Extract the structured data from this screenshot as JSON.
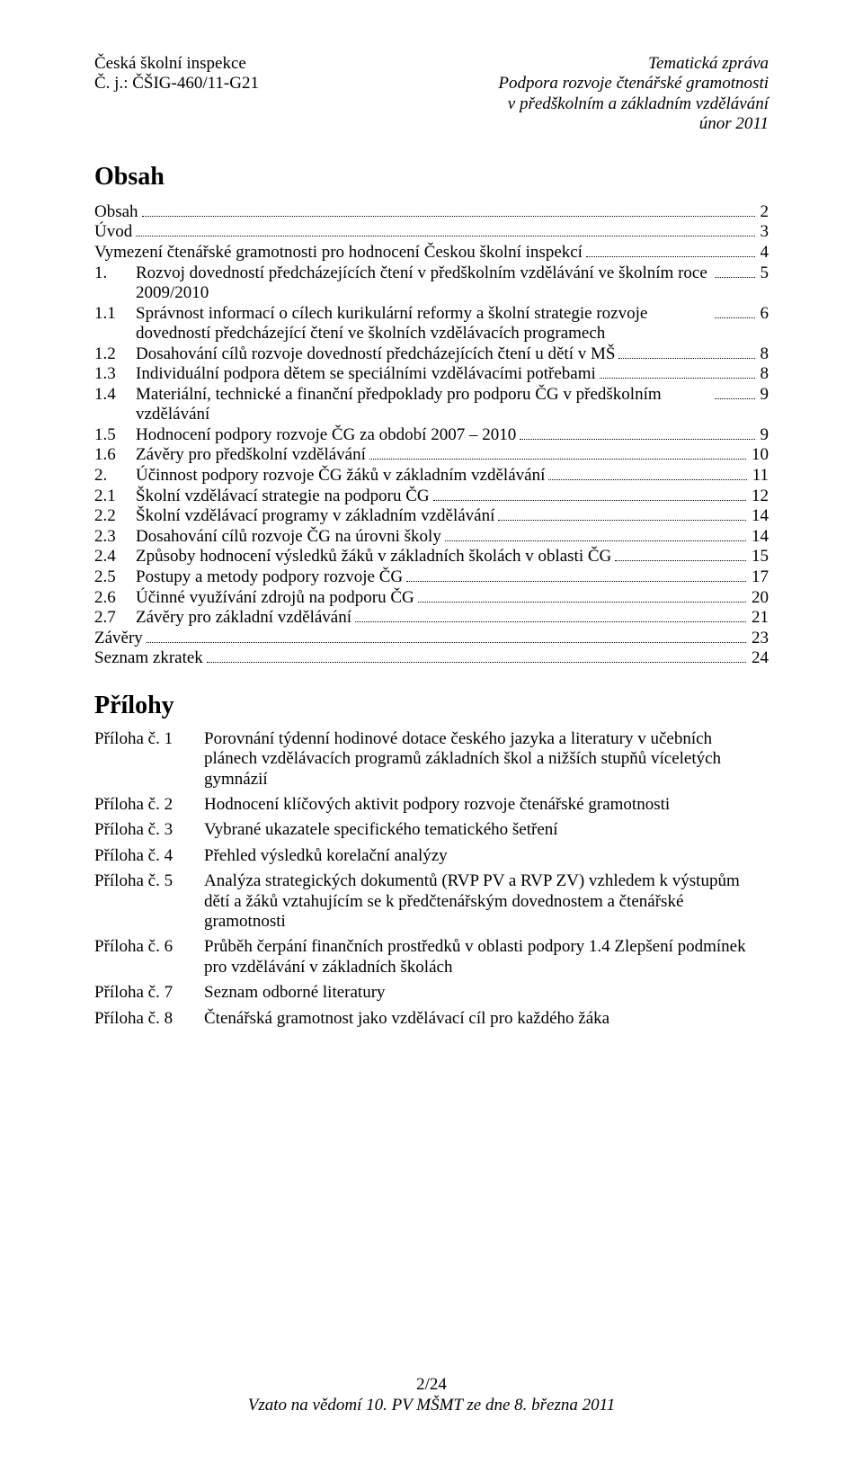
{
  "header": {
    "left_line1": "Česká školní inspekce",
    "left_line2": "Č. j.: ČŠIG-460/11-G21",
    "right_line1": "Tematická zpráva",
    "right_line2": "Podpora rozvoje čtenářské gramotnosti",
    "right_line3": "v předškolním a základním vzdělávání",
    "right_line4": "únor 2011"
  },
  "title_obsah": "Obsah",
  "toc": [
    {
      "num": "",
      "label": "Obsah",
      "page": "2",
      "indent": 0
    },
    {
      "num": "",
      "label": "Úvod",
      "page": "3",
      "indent": 0
    },
    {
      "num": "",
      "label": "Vymezení čtenářské gramotnosti pro hodnocení Českou školní inspekcí",
      "page": "4",
      "indent": 0
    },
    {
      "num": "1.",
      "label": "Rozvoj dovedností předcházejících čtení v předškolním vzdělávání ve školním roce 2009/2010",
      "page": "5",
      "indent": 0,
      "wrap": true
    },
    {
      "num": "1.1",
      "label": "Správnost informací o cílech kurikulární reformy a školní strategie rozvoje dovedností předcházející čtení ve školních vzdělávacích programech",
      "page": "6",
      "indent": 1,
      "wrap": true
    },
    {
      "num": "1.2",
      "label": "Dosahování cílů rozvoje dovedností předcházejících čtení u dětí v MŠ",
      "page": "8",
      "indent": 1
    },
    {
      "num": "1.3",
      "label": "Individuální podpora dětem se speciálními vzdělávacími potřebami",
      "page": "8",
      "indent": 1
    },
    {
      "num": "1.4",
      "label": "Materiální, technické a finanční předpoklady pro podporu ČG v předškolním vzdělávání",
      "page": "9",
      "indent": 1,
      "wrap": true
    },
    {
      "num": "1.5",
      "label": "Hodnocení podpory rozvoje ČG za období 2007 – 2010",
      "page": "9",
      "indent": 1
    },
    {
      "num": "1.6",
      "label": "Závěry pro předškolní vzdělávání",
      "page": "10",
      "indent": 1
    },
    {
      "num": "2.",
      "label": "Účinnost podpory rozvoje ČG žáků v základním vzdělávání",
      "page": "11",
      "indent": 0
    },
    {
      "num": "2.1",
      "label": "Školní vzdělávací strategie na podporu ČG",
      "page": "12",
      "indent": 1
    },
    {
      "num": "2.2",
      "label": "Školní vzdělávací programy v základním vzdělávání",
      "page": "14",
      "indent": 1
    },
    {
      "num": "2.3",
      "label": "Dosahování cílů rozvoje ČG na úrovni školy",
      "page": "14",
      "indent": 1
    },
    {
      "num": "2.4",
      "label": "Způsoby hodnocení výsledků žáků v základních školách v oblasti ČG",
      "page": "15",
      "indent": 1
    },
    {
      "num": "2.5",
      "label": "Postupy a metody podpory rozvoje ČG",
      "page": "17",
      "indent": 1
    },
    {
      "num": "2.6",
      "label": "Účinné využívání zdrojů na podporu ČG",
      "page": "20",
      "indent": 1
    },
    {
      "num": "2.7",
      "label": "Závěry pro základní vzdělávání",
      "page": "21",
      "indent": 1
    },
    {
      "num": "",
      "label": "Závěry",
      "page": "23",
      "indent": 0
    },
    {
      "num": "",
      "label": "Seznam zkratek",
      "page": "24",
      "indent": 0
    }
  ],
  "title_prilohy": "Přílohy",
  "appendices": [
    {
      "label": "Příloha č. 1",
      "text": "Porovnání týdenní hodinové dotace českého jazyka a literatury v učebních plánech vzdělávacích programů základních škol a nižších stupňů víceletých gymnázií"
    },
    {
      "label": "Příloha č. 2",
      "text": "Hodnocení klíčových aktivit podpory rozvoje čtenářské gramotnosti"
    },
    {
      "label": "Příloha č. 3",
      "text": "Vybrané ukazatele specifického tematického šetření"
    },
    {
      "label": "Příloha č. 4",
      "text": "Přehled výsledků korelační analýzy"
    },
    {
      "label": "Příloha č. 5",
      "text": "Analýza strategických dokumentů (RVP PV a RVP ZV) vzhledem k výstupům dětí a žáků vztahujícím se k předčtenářským dovednostem a čtenářské gramotnosti"
    },
    {
      "label": "Příloha č. 6",
      "text": "Průběh čerpání finančních prostředků v oblasti podpory 1.4 Zlepšení podmínek pro vzdělávání v základních školách"
    },
    {
      "label": "Příloha č. 7",
      "text": "Seznam odborné literatury"
    },
    {
      "label": "Příloha č. 8",
      "text": "Čtenářská gramotnost jako vzdělávací cíl pro každého žáka"
    }
  ],
  "footer": {
    "line1": "2/24",
    "line2": "Vzato na vědomí 10. PV MŠMT ze dne 8. března 2011"
  }
}
